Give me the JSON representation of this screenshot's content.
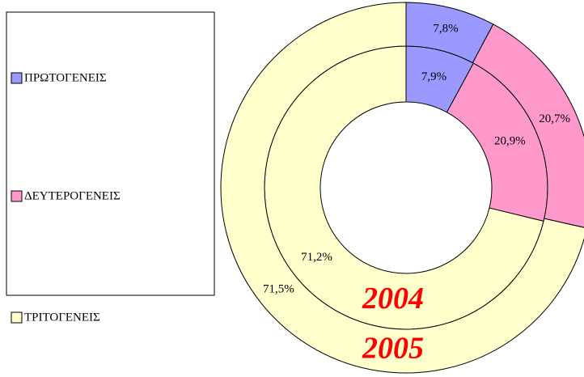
{
  "chart_data": {
    "type": "doughnut",
    "categories": [
      "ΠΡΩΤΟΓΕΝΕΙΣ",
      "ΔΕΥΤΕΡΟΓΕΝΕΙΣ",
      "ΤΡΙΤΟΓΕΝΕΙΣ"
    ],
    "colors": [
      "#9999ff",
      "#ff99cc",
      "#ffffcc"
    ],
    "series": [
      {
        "name": "2004",
        "values": [
          7.9,
          20.9,
          71.2
        ],
        "value_labels": [
          "7,9%",
          "20,9%",
          "71,2%"
        ]
      },
      {
        "name": "2005",
        "values": [
          7.8,
          20.7,
          71.5
        ],
        "value_labels": [
          "7,8%",
          "20,7%",
          "71,5%"
        ]
      }
    ],
    "legend": "left"
  }
}
